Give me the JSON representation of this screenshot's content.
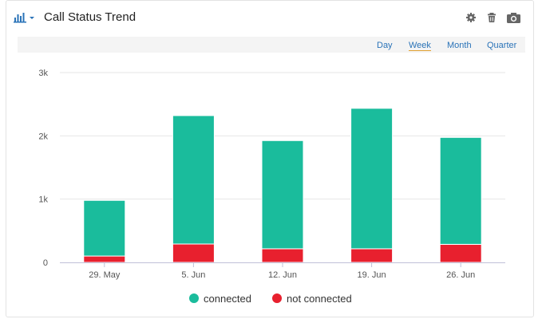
{
  "widget": {
    "title": "Call Status Trend"
  },
  "header_icons": {
    "chart_type": "bar-chart-icon",
    "settings": "gear-icon",
    "delete": "trash-icon",
    "snapshot": "camera-icon"
  },
  "periods": [
    {
      "label": "Day",
      "active": false
    },
    {
      "label": "Week",
      "active": true
    },
    {
      "label": "Month",
      "active": false
    },
    {
      "label": "Quarter",
      "active": false
    }
  ],
  "chart_data": {
    "type": "bar",
    "stacked": true,
    "categories": [
      "29. May",
      "5. Jun",
      "12. Jun",
      "19. Jun",
      "26. Jun"
    ],
    "series": [
      {
        "name": "connected",
        "color": "#1abc9c",
        "values": [
          880,
          2030,
          1710,
          2220,
          1690
        ]
      },
      {
        "name": "not connected",
        "color": "#e8202e",
        "values": [
          100,
          290,
          215,
          215,
          285
        ]
      }
    ],
    "y_ticks": [
      "0",
      "1k",
      "2k",
      "3k"
    ],
    "ylim": [
      0,
      3000
    ],
    "grid": true,
    "legend_position": "bottom"
  }
}
